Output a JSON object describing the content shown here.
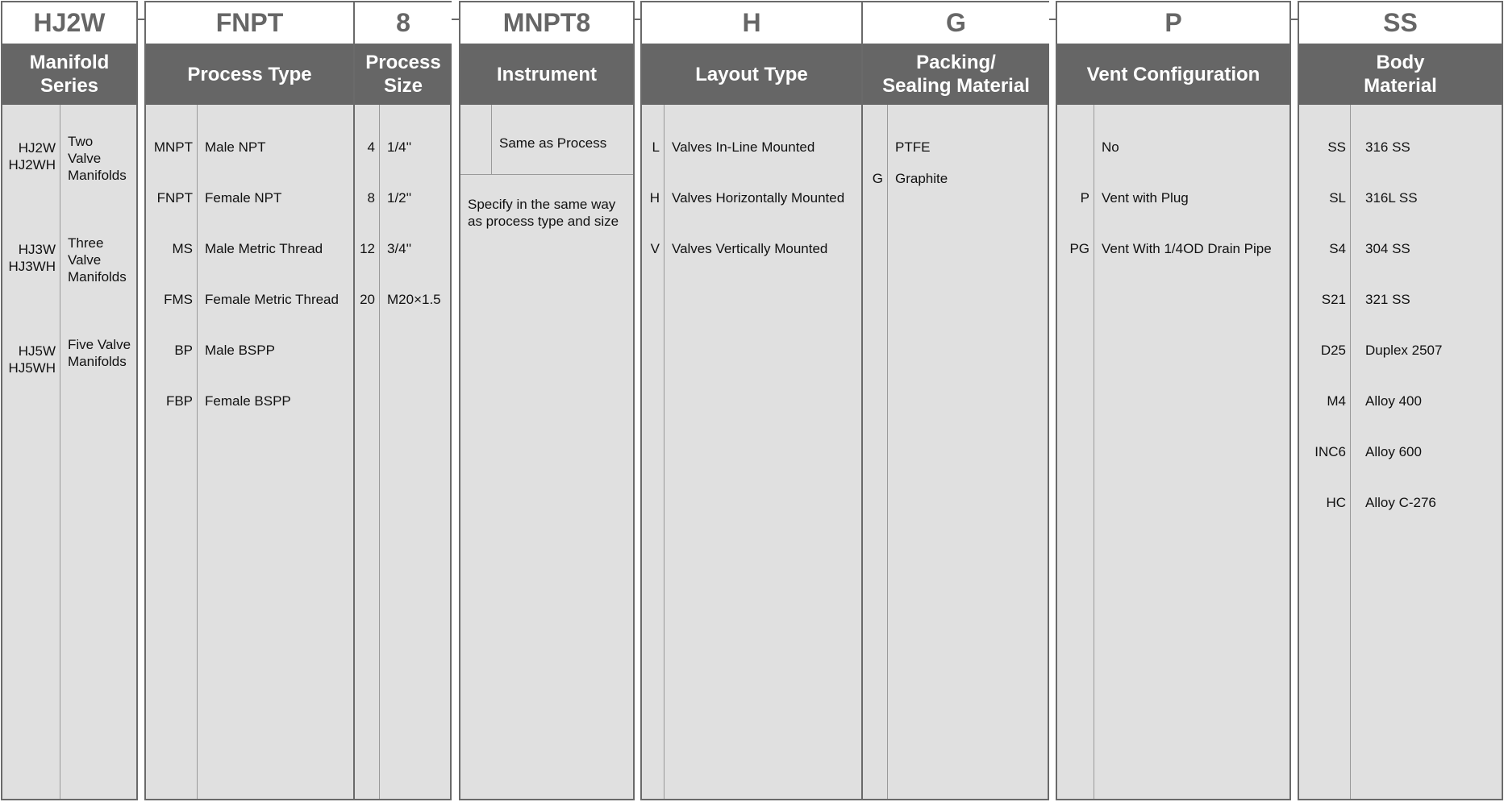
{
  "columns": [
    {
      "code": "HJ2W",
      "title": "Manifold\nSeries",
      "items": [
        {
          "code": "HJ2W\nHJ2WH",
          "desc": "Two\nValve\nManifolds"
        },
        {
          "code": "HJ3W\nHJ3WH",
          "desc": "Three\nValve\nManifolds"
        },
        {
          "code": "HJ5W\nHJ5WH",
          "desc": "Five Valve\nManifolds"
        }
      ]
    },
    {
      "code": "FNPT",
      "title": "Process Type",
      "items": [
        {
          "code": "MNPT",
          "desc": "Male NPT"
        },
        {
          "code": "FNPT",
          "desc": "Female NPT"
        },
        {
          "code": "MS",
          "desc": "Male Metric Thread"
        },
        {
          "code": "FMS",
          "desc": "Female Metric Thread"
        },
        {
          "code": "BP",
          "desc": "Male BSPP"
        },
        {
          "code": "FBP",
          "desc": "Female BSPP"
        }
      ]
    },
    {
      "code": "8",
      "title": "Process\nSize",
      "items": [
        {
          "code": "4",
          "desc": "1/4''"
        },
        {
          "code": "8",
          "desc": "1/2''"
        },
        {
          "code": "12",
          "desc": "3/4''"
        },
        {
          "code": "20",
          "desc": "M20×1.5"
        }
      ]
    },
    {
      "code": "MNPT8",
      "title": "Instrument",
      "items": [
        {
          "code": "",
          "desc": "Same as Process"
        }
      ],
      "note": "Specify in the same way\nas process type and size"
    },
    {
      "code": "H",
      "title": "Layout Type",
      "items": [
        {
          "code": "L",
          "desc": "Valves In-Line Mounted"
        },
        {
          "code": "H",
          "desc": "Valves Horizontally Mounted"
        },
        {
          "code": "V",
          "desc": "Valves Vertically Mounted"
        }
      ]
    },
    {
      "code": "G",
      "title": "Packing/\nSealing Material",
      "items": [
        {
          "code": "",
          "desc": "PTFE"
        },
        {
          "code": "G",
          "desc": "Graphite"
        }
      ]
    },
    {
      "code": "P",
      "title": "Vent Configuration",
      "items": [
        {
          "code": "",
          "desc": "No"
        },
        {
          "code": "P",
          "desc": "Vent with Plug"
        },
        {
          "code": "PG",
          "desc": "Vent With 1/4OD Drain Pipe"
        }
      ]
    },
    {
      "code": "SS",
      "title": "Body\nMaterial",
      "items": [
        {
          "code": "SS",
          "desc": "316 SS"
        },
        {
          "code": "SL",
          "desc": "316L SS"
        },
        {
          "code": "S4",
          "desc": "304 SS"
        },
        {
          "code": "S21",
          "desc": "321 SS"
        },
        {
          "code": "D25",
          "desc": "Duplex 2507"
        },
        {
          "code": "M4",
          "desc": "Alloy 400"
        },
        {
          "code": "INC6",
          "desc": "Alloy 600"
        },
        {
          "code": "HC",
          "desc": "Alloy C-276"
        }
      ]
    }
  ],
  "colors": {
    "border": "#6a6a6a",
    "header": "#666666",
    "body": "#e0e0e0"
  }
}
